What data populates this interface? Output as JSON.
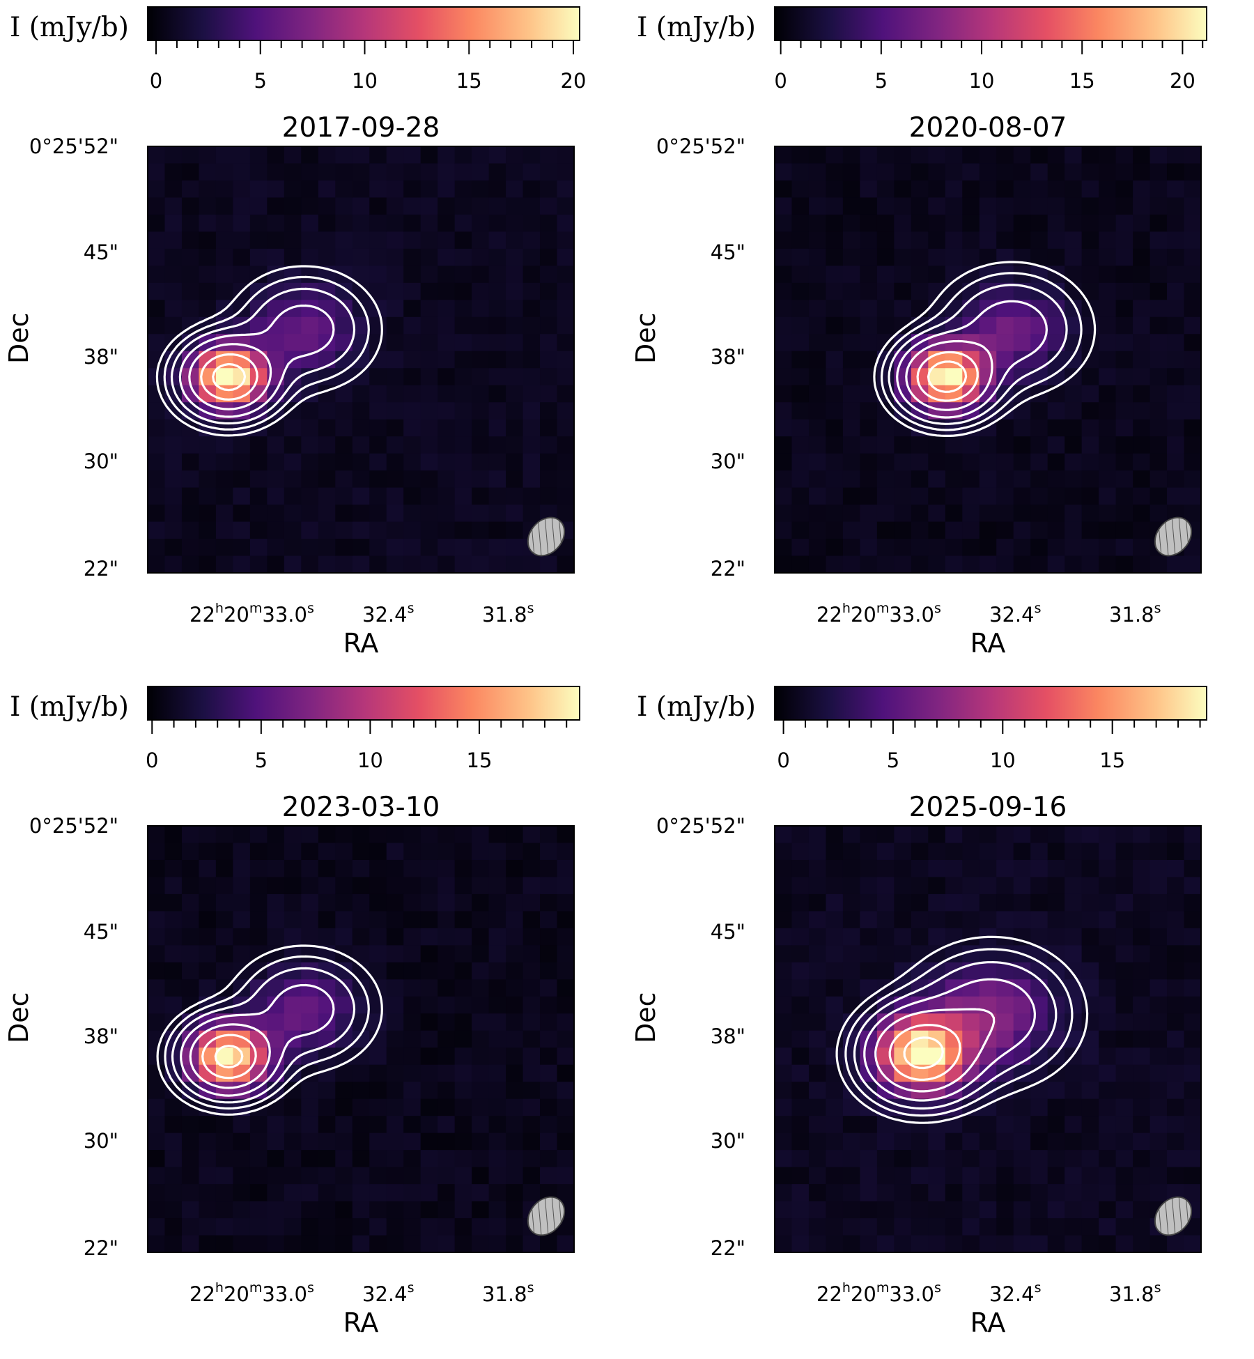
{
  "colormap": "magma",
  "contour_color": "#ffffff",
  "beam_color": "#c0c0c0",
  "chart_data": [
    {
      "type": "heatmap",
      "title": "2017-09-28",
      "colorbar": {
        "label": "I (mJy/b)",
        "range": [
          -0.4,
          20.3
        ],
        "ticks": [
          "0",
          "5",
          "10",
          "15",
          "20"
        ],
        "tick_values": [
          0,
          5,
          10,
          15,
          20
        ],
        "minor_step": 1
      },
      "xlabel": "RA",
      "ylabel": "Dec",
      "xticks": [
        {
          "h": "22",
          "m": "20",
          "s": "33.0"
        },
        {
          "s": "32.4"
        },
        {
          "s": "31.8"
        }
      ],
      "yticks": [
        "0°25'52\"",
        "45\"",
        "38\"",
        "30\"",
        "22\""
      ],
      "sources": [
        {
          "ra_s": 32.92,
          "dec": 35.3,
          "peak": 20.0,
          "sigma": 1.6
        },
        {
          "ra_s": 32.62,
          "dec": 38.8,
          "peak": 5.5,
          "sigma": 2.2
        }
      ],
      "contours": "solid white levels, dashed negative"
    },
    {
      "type": "heatmap",
      "title": "2020-08-07",
      "colorbar": {
        "label": "I (mJy/b)",
        "range": [
          -0.3,
          21.2
        ],
        "ticks": [
          "0",
          "5",
          "10",
          "15",
          "20"
        ],
        "tick_values": [
          0,
          5,
          10,
          15,
          20
        ],
        "minor_step": 1
      },
      "xlabel": "RA",
      "ylabel": "Dec",
      "xticks": [
        {
          "h": "22",
          "m": "20",
          "s": "33.0"
        },
        {
          "s": "32.4"
        },
        {
          "s": "31.8"
        }
      ],
      "yticks": [
        "0°25'52\"",
        "45\"",
        "38\"",
        "30\"",
        "22\""
      ],
      "sources": [
        {
          "ra_s": 32.56,
          "dec": 35.3,
          "peak": 21.0,
          "sigma": 1.6
        },
        {
          "ra_s": 32.3,
          "dec": 38.8,
          "peak": 6.0,
          "sigma": 2.3
        }
      ],
      "contours": "solid white levels"
    },
    {
      "type": "heatmap",
      "title": "2023-03-10",
      "colorbar": {
        "label": "I (mJy/b)",
        "range": [
          -0.2,
          19.6
        ],
        "ticks": [
          "0",
          "5",
          "10",
          "15"
        ],
        "tick_values": [
          0,
          5,
          10,
          15
        ],
        "minor_step": 1
      },
      "xlabel": "RA",
      "ylabel": "Dec",
      "xticks": [
        {
          "h": "22",
          "m": "20",
          "s": "33.0"
        },
        {
          "s": "32.4"
        },
        {
          "s": "31.8"
        }
      ],
      "yticks": [
        "0°25'52\"",
        "45\"",
        "38\"",
        "30\"",
        "22\""
      ],
      "sources": [
        {
          "ra_s": 32.92,
          "dec": 35.3,
          "peak": 19.0,
          "sigma": 1.6
        },
        {
          "ra_s": 32.62,
          "dec": 38.8,
          "peak": 5.5,
          "sigma": 2.2
        }
      ],
      "contours": "solid white levels"
    },
    {
      "type": "heatmap",
      "title": "2025-09-16",
      "colorbar": {
        "label": "I (mJy/b)",
        "range": [
          -0.4,
          19.3
        ],
        "ticks": [
          "0",
          "5",
          "10",
          "15"
        ],
        "tick_values": [
          0,
          5,
          10,
          15
        ],
        "minor_step": 1
      },
      "xlabel": "RA",
      "ylabel": "Dec",
      "xticks": [
        {
          "h": "22",
          "m": "20",
          "s": "33.0"
        },
        {
          "s": "32.4"
        },
        {
          "s": "31.8"
        }
      ],
      "yticks": [
        "0°25'52\"",
        "45\"",
        "38\"",
        "30\"",
        "22\""
      ],
      "sources": [
        {
          "ra_s": 32.66,
          "dec": 35.5,
          "peak": 19.0,
          "sigma": 1.9
        },
        {
          "ra_s": 32.38,
          "dec": 38.4,
          "peak": 6.5,
          "sigma": 2.6
        }
      ],
      "contours": "solid white levels, dashed negative"
    }
  ]
}
